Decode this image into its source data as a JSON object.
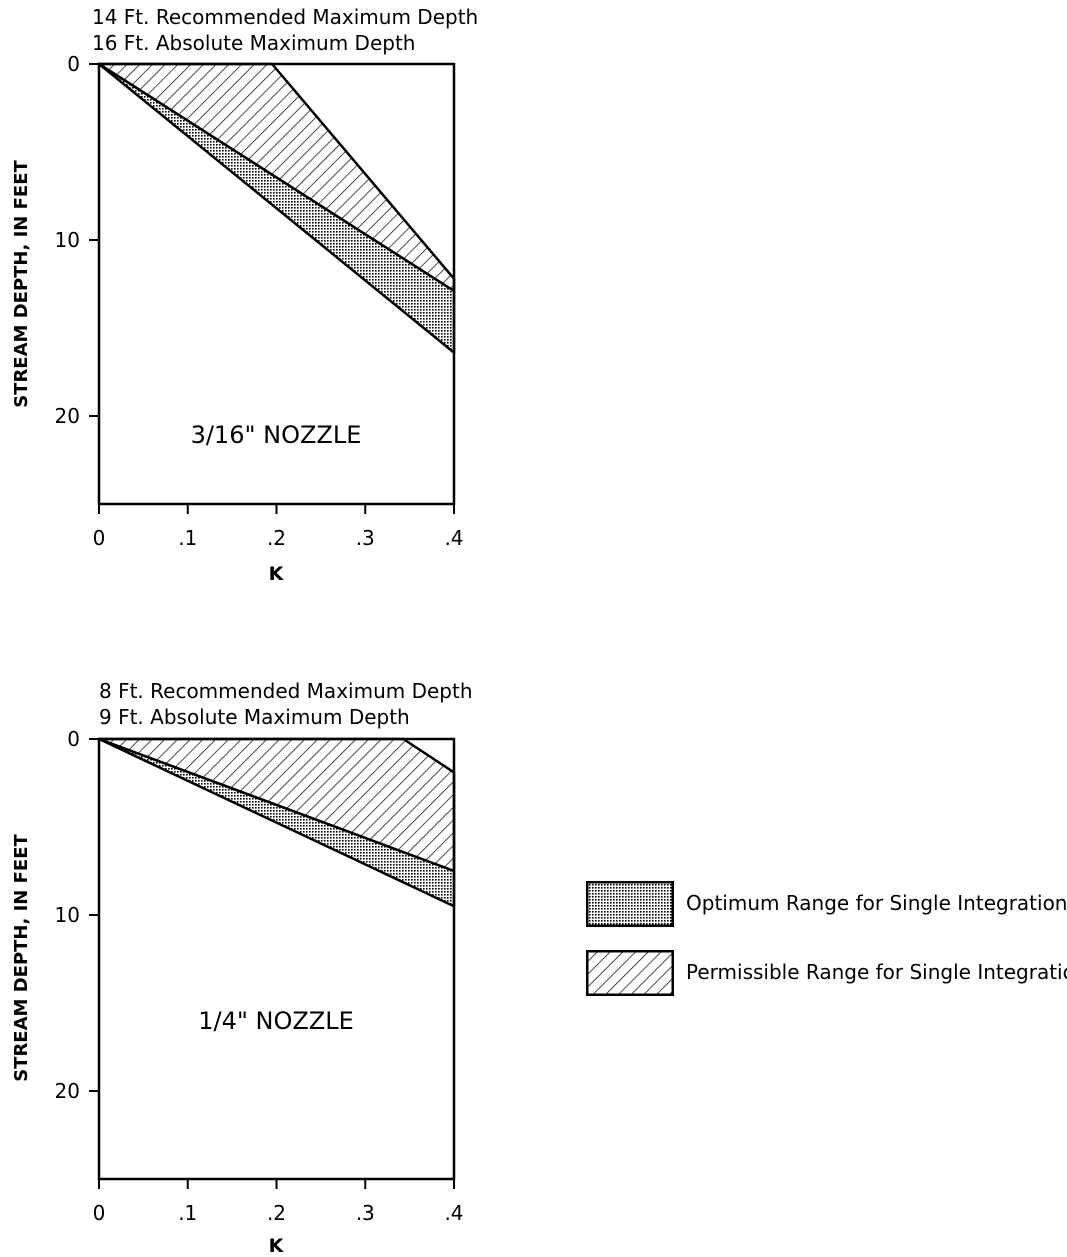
{
  "chart_data": [
    {
      "type": "area",
      "panel_label": "3/16\" NOZZLE",
      "notes": [
        "14 Ft. Recommended Maximum Depth",
        "16 Ft. Absolute Maximum Depth"
      ],
      "xlabel": "K",
      "ylabel": "STREAM DEPTH, IN FEET",
      "xlim": [
        0,
        0.4
      ],
      "ylim": [
        25,
        0
      ],
      "y_inverted": true,
      "xticks": [
        0,
        0.1,
        0.2,
        0.3,
        0.4
      ],
      "xtick_labels": [
        "0",
        ".1",
        ".2",
        ".3",
        ".4"
      ],
      "yticks": [
        0,
        10,
        20
      ],
      "ytick_labels": [
        "0",
        "10",
        "20"
      ],
      "regions": [
        {
          "name": "Permissible Range for Single Integration",
          "upper_boundary": [
            [
              0,
              0
            ],
            [
              0.195,
              0
            ],
            [
              0.4,
              12.2
            ]
          ],
          "lower_boundary": [
            [
              0,
              0
            ],
            [
              0.4,
              12.9
            ]
          ]
        },
        {
          "name": "Optimum Range for Single Integration",
          "upper_boundary": [
            [
              0,
              0
            ],
            [
              0.4,
              12.9
            ]
          ],
          "lower_boundary": [
            [
              0,
              0
            ],
            [
              0.4,
              16.4
            ]
          ]
        }
      ]
    },
    {
      "type": "area",
      "panel_label": "1/4\" NOZZLE",
      "notes": [
        "8 Ft. Recommended Maximum Depth",
        "9 Ft. Absolute Maximum Depth"
      ],
      "xlabel": "K",
      "ylabel": "STREAM DEPTH, IN FEET",
      "xlim": [
        0,
        0.4
      ],
      "ylim": [
        25,
        0
      ],
      "y_inverted": true,
      "xticks": [
        0,
        0.1,
        0.2,
        0.3,
        0.4
      ],
      "xtick_labels": [
        "0",
        ".1",
        ".2",
        ".3",
        ".4"
      ],
      "yticks": [
        0,
        10,
        20
      ],
      "ytick_labels": [
        "0",
        "10",
        "20"
      ],
      "regions": [
        {
          "name": "Permissible Range for Single Integration",
          "upper_boundary": [
            [
              0,
              0
            ],
            [
              0.343,
              0
            ],
            [
              0.4,
              1.9
            ]
          ],
          "lower_boundary": [
            [
              0,
              0
            ],
            [
              0.4,
              7.5
            ]
          ]
        },
        {
          "name": "Optimum Range for Single Integration",
          "upper_boundary": [
            [
              0,
              0
            ],
            [
              0.4,
              7.5
            ]
          ],
          "lower_boundary": [
            [
              0,
              0
            ],
            [
              0.4,
              9.5
            ]
          ]
        }
      ]
    }
  ],
  "legend": [
    {
      "label": "Optimum Range for Single Integration",
      "pattern": "dotted"
    },
    {
      "label": "Permissible Range for Single Integration",
      "pattern": "hatched"
    }
  ],
  "colors": {
    "ink": "#000000",
    "background": "#ffffff"
  }
}
